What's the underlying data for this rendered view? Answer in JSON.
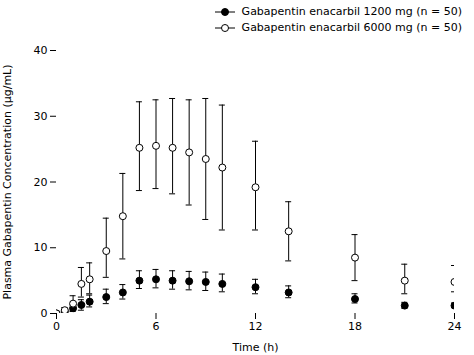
{
  "chart_data": {
    "type": "scatter",
    "xlabel": "Time (h)",
    "ylabel": "Plasma Gabapentin Concentration (μg/mL)",
    "xlim": [
      0,
      24
    ],
    "ylim": [
      0,
      40
    ],
    "xticks": [
      0,
      6,
      12,
      18,
      24
    ],
    "yticks": [
      0,
      10,
      20,
      30,
      40
    ],
    "grid": false,
    "legend": "upper right",
    "x": [
      0,
      0.5,
      1,
      1.5,
      2,
      3,
      4,
      5,
      6,
      7,
      8,
      9,
      10,
      12,
      14,
      18,
      21,
      24
    ],
    "series": [
      {
        "name": "Gabapentin enacarbil 1200 mg (n = 50)",
        "color": "#000000",
        "marker": "circle",
        "values": [
          0.0,
          0.3,
          0.8,
          1.3,
          1.8,
          2.5,
          3.2,
          5.0,
          5.2,
          5.0,
          4.9,
          4.8,
          4.5,
          4.0,
          3.2,
          2.2,
          1.2,
          1.2
        ],
        "yerr_lo": [
          0.0,
          0.2,
          0.5,
          0.8,
          0.8,
          1.0,
          1.0,
          1.2,
          1.3,
          1.3,
          1.3,
          1.3,
          1.2,
          1.0,
          0.8,
          0.6,
          0.4,
          0.3
        ],
        "yerr_hi": [
          0.0,
          0.3,
          0.5,
          0.8,
          1.0,
          1.2,
          1.2,
          1.5,
          1.5,
          1.5,
          1.5,
          1.5,
          1.5,
          1.2,
          1.0,
          0.8,
          0.5,
          0.4
        ]
      },
      {
        "name": "Gabapentin enacarbil 6000 mg (n = 50)",
        "color": "#000000",
        "marker": "open_circle",
        "values": [
          0.0,
          0.5,
          1.5,
          4.5,
          5.2,
          9.5,
          14.8,
          25.2,
          25.5,
          25.2,
          24.5,
          23.5,
          22.2,
          19.2,
          12.5,
          8.5,
          5.0,
          4.8
        ],
        "yerr_lo": [
          0.0,
          0.3,
          1.0,
          2.0,
          2.2,
          4.0,
          6.5,
          6.5,
          6.5,
          7.0,
          8.0,
          9.2,
          9.5,
          6.5,
          4.5,
          3.5,
          2.0,
          1.5
        ],
        "yerr_hi": [
          0.0,
          0.4,
          1.2,
          2.5,
          2.5,
          5.0,
          6.5,
          7.0,
          7.0,
          7.5,
          8.0,
          9.2,
          9.5,
          7.0,
          4.5,
          3.5,
          2.5,
          2.5
        ]
      }
    ]
  }
}
